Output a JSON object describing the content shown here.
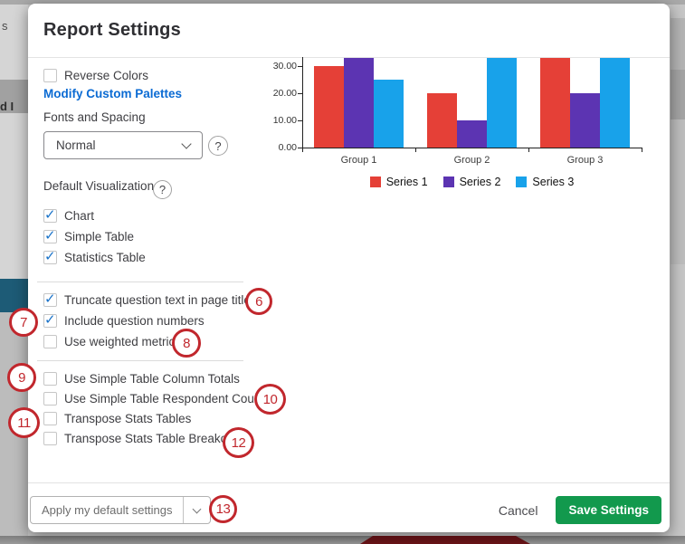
{
  "modal": {
    "title": "Report Settings"
  },
  "background": {
    "left_text_top": "s",
    "left_text_mid": "d I"
  },
  "settings": {
    "reverse_colors": {
      "label": "Reverse Colors",
      "checked": false
    },
    "modify_palettes_link": "Modify Custom Palettes",
    "fonts_and_spacing": {
      "label": "Fonts and Spacing",
      "value": "Normal"
    },
    "help_glyph": "?",
    "default_visualizations_label": "Default Visualizations",
    "viz_checkboxes": [
      {
        "label": "Chart",
        "checked": true
      },
      {
        "label": "Simple Table",
        "checked": true
      },
      {
        "label": "Statistics Table",
        "checked": true
      }
    ],
    "option_checkboxes_1": [
      {
        "label": "Truncate question text in page titles",
        "checked": true
      },
      {
        "label": "Include question numbers",
        "checked": true
      },
      {
        "label": "Use weighted metrics",
        "checked": false
      }
    ],
    "option_checkboxes_2": [
      {
        "label": "Use Simple Table Column Totals",
        "checked": false
      },
      {
        "label": "Use Simple Table Respondent Counts",
        "checked": false
      },
      {
        "label": "Transpose Stats Tables",
        "checked": false
      },
      {
        "label": "Transpose Stats Table Breakouts",
        "checked": false
      }
    ]
  },
  "footer": {
    "apply_button_label": "Apply my default settings",
    "cancel_label": "Cancel",
    "save_label": "Save Settings"
  },
  "annotations": [
    "6",
    "7",
    "8",
    "9",
    "10",
    "11",
    "12",
    "13"
  ],
  "colors": {
    "accent_link": "#0b6bd3",
    "save_green": "#12994d",
    "annotation_red": "#c1272d",
    "checkmark_blue": "#1a73c9"
  },
  "chart_data": {
    "type": "bar",
    "categories": [
      "Group 1",
      "Group 2",
      "Group 3"
    ],
    "series": [
      {
        "name": "Series 1",
        "color": "#e54037",
        "values": [
          30,
          20,
          33
        ]
      },
      {
        "name": "Series 2",
        "color": "#5c34b2",
        "values": [
          33,
          10,
          20
        ]
      },
      {
        "name": "Series 3",
        "color": "#18a2ea",
        "values": [
          25,
          33,
          33
        ]
      }
    ],
    "ytick_labels": [
      "0.00",
      "10.00",
      "20.00",
      "30.00"
    ],
    "ytick_values": [
      0,
      10,
      20,
      30
    ],
    "ylim": [
      0,
      33.4
    ],
    "grid": false,
    "legend_position": "bottom",
    "title": "",
    "xlabel": "",
    "ylabel": ""
  }
}
